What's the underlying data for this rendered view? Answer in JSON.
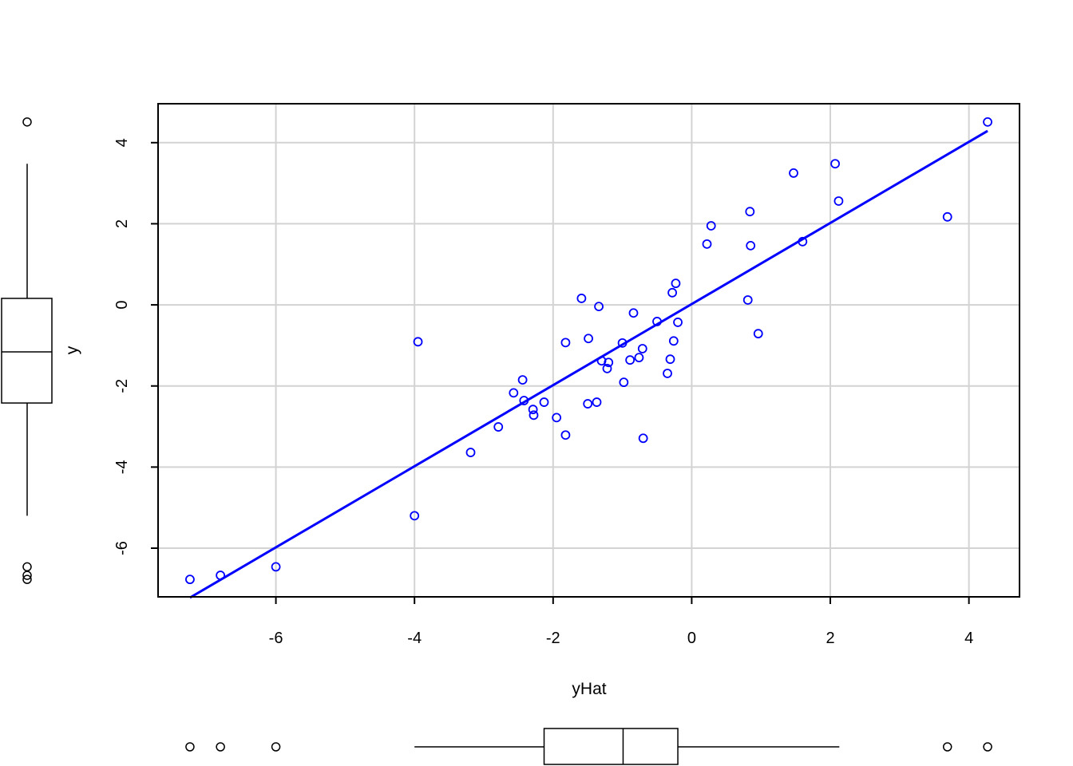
{
  "chart_data": {
    "type": "scatter",
    "title": "",
    "xlabel": "yHat",
    "ylabel": "y",
    "xlim": [
      -7.7,
      4.73
    ],
    "ylim": [
      -7.2,
      4.96
    ],
    "xticks": [
      -6,
      -4,
      -2,
      0,
      2,
      4
    ],
    "yticks": [
      -6,
      -4,
      -2,
      0,
      2,
      4
    ],
    "xtick_labels": [
      "-6",
      "-4",
      "-2",
      "0",
      "2",
      "4"
    ],
    "ytick_labels": [
      "-6",
      "-4",
      "-2",
      "0",
      "2",
      "4"
    ],
    "grid": true,
    "point_color": "#0000ff",
    "line_color": "#0000ff",
    "fit_line": {
      "intercept": 0.02,
      "slope": 1.0
    },
    "points": [
      [
        4.27,
        4.51
      ],
      [
        3.69,
        2.17
      ],
      [
        2.12,
        2.56
      ],
      [
        2.07,
        3.48
      ],
      [
        1.47,
        3.25
      ],
      [
        1.6,
        1.56
      ],
      [
        0.84,
        2.3
      ],
      [
        0.85,
        1.46
      ],
      [
        0.81,
        0.12
      ],
      [
        0.96,
        -0.71
      ],
      [
        0.28,
        1.95
      ],
      [
        0.22,
        1.5
      ],
      [
        -0.23,
        0.53
      ],
      [
        -0.28,
        0.3
      ],
      [
        -0.2,
        -0.43
      ],
      [
        -0.5,
        -0.41
      ],
      [
        -0.26,
        -0.89
      ],
      [
        -0.31,
        -1.34
      ],
      [
        -0.35,
        -1.69
      ],
      [
        -0.84,
        -0.2
      ],
      [
        -0.71,
        -1.08
      ],
      [
        -0.76,
        -1.3
      ],
      [
        -0.89,
        -1.36
      ],
      [
        -1.0,
        -0.94
      ],
      [
        -0.98,
        -1.91
      ],
      [
        -0.7,
        -3.29
      ],
      [
        -1.34,
        -0.04
      ],
      [
        -1.59,
        0.16
      ],
      [
        -1.49,
        -0.83
      ],
      [
        -1.82,
        -0.93
      ],
      [
        -1.3,
        -1.38
      ],
      [
        -1.2,
        -1.42
      ],
      [
        -1.22,
        -1.57
      ],
      [
        -1.37,
        -2.4
      ],
      [
        -1.5,
        -2.44
      ],
      [
        -1.82,
        -3.21
      ],
      [
        -1.95,
        -2.78
      ],
      [
        -2.13,
        -2.4
      ],
      [
        -2.44,
        -1.85
      ],
      [
        -2.57,
        -2.17
      ],
      [
        -2.42,
        -2.36
      ],
      [
        -2.29,
        -2.58
      ],
      [
        -2.28,
        -2.72
      ],
      [
        -2.79,
        -3.01
      ],
      [
        -3.19,
        -3.64
      ],
      [
        -3.95,
        -0.91
      ],
      [
        -4.0,
        -5.2
      ],
      [
        -6.0,
        -6.46
      ],
      [
        -6.8,
        -6.67
      ],
      [
        -7.24,
        -6.77
      ]
    ],
    "marginal_boxplots": {
      "y": {
        "whisker_low": -5.2,
        "q1": -2.42,
        "median": -1.16,
        "q3": 0.16,
        "whisker_high": 3.48,
        "outliers": [
          4.51,
          -6.46,
          -6.67,
          -6.77
        ]
      },
      "yHat": {
        "whisker_low": -4.0,
        "q1": -2.13,
        "median": -0.99,
        "q3": -0.2,
        "whisker_high": 2.13,
        "outliers": [
          -7.24,
          -6.8,
          -6.0,
          3.69,
          4.27
        ]
      }
    }
  }
}
